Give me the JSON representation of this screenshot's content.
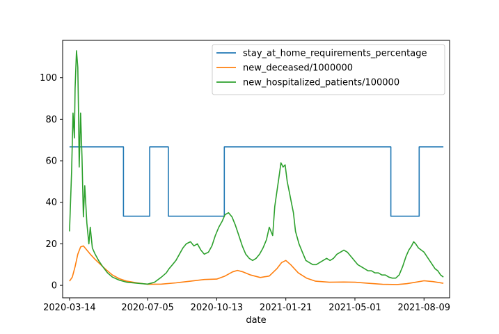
{
  "chart_data": {
    "type": "line",
    "title": "",
    "xlabel": "date",
    "ylabel": "",
    "x_type": "date",
    "xlim": [
      "2020-03-04",
      "2021-09-15"
    ],
    "ylim": [
      -6,
      118
    ],
    "x_ticks": [
      "2020-03-14",
      "2020-07-05",
      "2020-10-13",
      "2021-01-21",
      "2021-05-01",
      "2021-08-09"
    ],
    "y_ticks": [
      0,
      20,
      40,
      60,
      80,
      100
    ],
    "grid": false,
    "legend_position": "top-right",
    "series": [
      {
        "name": "stay_at_home_requirements_percentage",
        "color": "#1f77b4",
        "step": true,
        "points": [
          [
            "2020-03-14",
            66.7
          ],
          [
            "2020-05-31",
            66.7
          ],
          [
            "2020-05-31",
            33.3
          ],
          [
            "2020-07-08",
            33.3
          ],
          [
            "2020-07-08",
            66.7
          ],
          [
            "2020-08-04",
            66.7
          ],
          [
            "2020-08-04",
            33.3
          ],
          [
            "2020-10-24",
            33.3
          ],
          [
            "2020-10-24",
            66.7
          ],
          [
            "2021-06-22",
            66.7
          ],
          [
            "2021-06-22",
            33.3
          ],
          [
            "2021-08-02",
            33.3
          ],
          [
            "2021-08-02",
            66.7
          ],
          [
            "2021-09-06",
            66.7
          ]
        ]
      },
      {
        "name": "new_deceased/1000000",
        "color": "#ff7f0e",
        "step": false,
        "points": [
          [
            "2020-03-14",
            2
          ],
          [
            "2020-03-18",
            4
          ],
          [
            "2020-03-22",
            9
          ],
          [
            "2020-03-26",
            15
          ],
          [
            "2020-03-30",
            18.5
          ],
          [
            "2020-04-03",
            19
          ],
          [
            "2020-04-08",
            17
          ],
          [
            "2020-04-13",
            15
          ],
          [
            "2020-04-20",
            12.5
          ],
          [
            "2020-04-28",
            10
          ],
          [
            "2020-05-06",
            7.5
          ],
          [
            "2020-05-15",
            5
          ],
          [
            "2020-05-25",
            3.2
          ],
          [
            "2020-06-05",
            2
          ],
          [
            "2020-06-20",
            1.2
          ],
          [
            "2020-07-05",
            0.5
          ],
          [
            "2020-07-25",
            0.6
          ],
          [
            "2020-08-15",
            1.2
          ],
          [
            "2020-09-05",
            2
          ],
          [
            "2020-09-25",
            2.8
          ],
          [
            "2020-10-13",
            3
          ],
          [
            "2020-10-25",
            4.5
          ],
          [
            "2020-11-05",
            6.5
          ],
          [
            "2020-11-12",
            7.2
          ],
          [
            "2020-11-20",
            6.5
          ],
          [
            "2020-12-01",
            5
          ],
          [
            "2020-12-15",
            3.8
          ],
          [
            "2020-12-28",
            4.5
          ],
          [
            "2021-01-08",
            8
          ],
          [
            "2021-01-15",
            11
          ],
          [
            "2021-01-21",
            12
          ],
          [
            "2021-01-28",
            10
          ],
          [
            "2021-02-08",
            6
          ],
          [
            "2021-02-20",
            3.5
          ],
          [
            "2021-03-05",
            2
          ],
          [
            "2021-03-25",
            1.5
          ],
          [
            "2021-04-15",
            1.6
          ],
          [
            "2021-05-01",
            1.5
          ],
          [
            "2021-05-20",
            1
          ],
          [
            "2021-06-10",
            0.5
          ],
          [
            "2021-07-01",
            0.4
          ],
          [
            "2021-07-15",
            0.8
          ],
          [
            "2021-07-28",
            1.5
          ],
          [
            "2021-08-09",
            2.2
          ],
          [
            "2021-08-22",
            1.8
          ],
          [
            "2021-09-06",
            1
          ]
        ]
      },
      {
        "name": "new_hospitalized_patients/100000",
        "color": "#2ca02c",
        "step": false,
        "points": [
          [
            "2020-03-14",
            26
          ],
          [
            "2020-03-17",
            55
          ],
          [
            "2020-03-19",
            83
          ],
          [
            "2020-03-21",
            71
          ],
          [
            "2020-03-22",
            95
          ],
          [
            "2020-03-24",
            113
          ],
          [
            "2020-03-26",
            105
          ],
          [
            "2020-03-27",
            84
          ],
          [
            "2020-03-28",
            57
          ],
          [
            "2020-03-30",
            83
          ],
          [
            "2020-04-01",
            62
          ],
          [
            "2020-04-03",
            33
          ],
          [
            "2020-04-05",
            48
          ],
          [
            "2020-04-08",
            30
          ],
          [
            "2020-04-11",
            20
          ],
          [
            "2020-04-13",
            28
          ],
          [
            "2020-04-16",
            18
          ],
          [
            "2020-04-20",
            15
          ],
          [
            "2020-04-25",
            12
          ],
          [
            "2020-05-01",
            9
          ],
          [
            "2020-05-08",
            6
          ],
          [
            "2020-05-15",
            4
          ],
          [
            "2020-05-25",
            2.5
          ],
          [
            "2020-06-05",
            1.5
          ],
          [
            "2020-06-20",
            1
          ],
          [
            "2020-07-05",
            0.6
          ],
          [
            "2020-07-15",
            1.5
          ],
          [
            "2020-07-25",
            4
          ],
          [
            "2020-08-01",
            6
          ],
          [
            "2020-08-05",
            8
          ],
          [
            "2020-08-10",
            10
          ],
          [
            "2020-08-15",
            12
          ],
          [
            "2020-08-20",
            15
          ],
          [
            "2020-08-25",
            18
          ],
          [
            "2020-08-30",
            20
          ],
          [
            "2020-09-05",
            21
          ],
          [
            "2020-09-10",
            19
          ],
          [
            "2020-09-15",
            20
          ],
          [
            "2020-09-20",
            17
          ],
          [
            "2020-09-25",
            15
          ],
          [
            "2020-10-01",
            16
          ],
          [
            "2020-10-06",
            19
          ],
          [
            "2020-10-11",
            24
          ],
          [
            "2020-10-16",
            28
          ],
          [
            "2020-10-21",
            31
          ],
          [
            "2020-10-25",
            34
          ],
          [
            "2020-10-30",
            35
          ],
          [
            "2020-11-04",
            33
          ],
          [
            "2020-11-09",
            29
          ],
          [
            "2020-11-14",
            24
          ],
          [
            "2020-11-19",
            19
          ],
          [
            "2020-11-24",
            15
          ],
          [
            "2020-11-29",
            13
          ],
          [
            "2020-12-04",
            12
          ],
          [
            "2020-12-09",
            13
          ],
          [
            "2020-12-14",
            15
          ],
          [
            "2020-12-19",
            18
          ],
          [
            "2020-12-24",
            22
          ],
          [
            "2020-12-28",
            28
          ],
          [
            "2021-01-02",
            24
          ],
          [
            "2021-01-05",
            38
          ],
          [
            "2021-01-08",
            45
          ],
          [
            "2021-01-11",
            52
          ],
          [
            "2021-01-14",
            59
          ],
          [
            "2021-01-17",
            57
          ],
          [
            "2021-01-20",
            58
          ],
          [
            "2021-01-23",
            50
          ],
          [
            "2021-01-26",
            45
          ],
          [
            "2021-01-29",
            40
          ],
          [
            "2021-02-01",
            35
          ],
          [
            "2021-02-04",
            26
          ],
          [
            "2021-02-09",
            20
          ],
          [
            "2021-02-14",
            16
          ],
          [
            "2021-02-19",
            12
          ],
          [
            "2021-02-24",
            11
          ],
          [
            "2021-03-01",
            10
          ],
          [
            "2021-03-06",
            10
          ],
          [
            "2021-03-11",
            11
          ],
          [
            "2021-03-16",
            12
          ],
          [
            "2021-03-21",
            13
          ],
          [
            "2021-03-26",
            12
          ],
          [
            "2021-03-31",
            13
          ],
          [
            "2021-04-05",
            15
          ],
          [
            "2021-04-10",
            16
          ],
          [
            "2021-04-15",
            17
          ],
          [
            "2021-04-20",
            16
          ],
          [
            "2021-04-25",
            14
          ],
          [
            "2021-04-30",
            12
          ],
          [
            "2021-05-05",
            10
          ],
          [
            "2021-05-10",
            9
          ],
          [
            "2021-05-15",
            8
          ],
          [
            "2021-05-20",
            7
          ],
          [
            "2021-05-25",
            7
          ],
          [
            "2021-05-30",
            6
          ],
          [
            "2021-06-04",
            6
          ],
          [
            "2021-06-09",
            5
          ],
          [
            "2021-06-14",
            5
          ],
          [
            "2021-06-19",
            4
          ],
          [
            "2021-06-24",
            3.5
          ],
          [
            "2021-06-29",
            3.5
          ],
          [
            "2021-07-04",
            5
          ],
          [
            "2021-07-09",
            9
          ],
          [
            "2021-07-14",
            14
          ],
          [
            "2021-07-18",
            17
          ],
          [
            "2021-07-22",
            19
          ],
          [
            "2021-07-25",
            21
          ],
          [
            "2021-07-28",
            20
          ],
          [
            "2021-08-01",
            18
          ],
          [
            "2021-08-05",
            17
          ],
          [
            "2021-08-09",
            16
          ],
          [
            "2021-08-13",
            14
          ],
          [
            "2021-08-17",
            12
          ],
          [
            "2021-08-21",
            10
          ],
          [
            "2021-08-25",
            8
          ],
          [
            "2021-08-29",
            7
          ],
          [
            "2021-09-02",
            5
          ],
          [
            "2021-09-06",
            4
          ]
        ]
      }
    ]
  }
}
